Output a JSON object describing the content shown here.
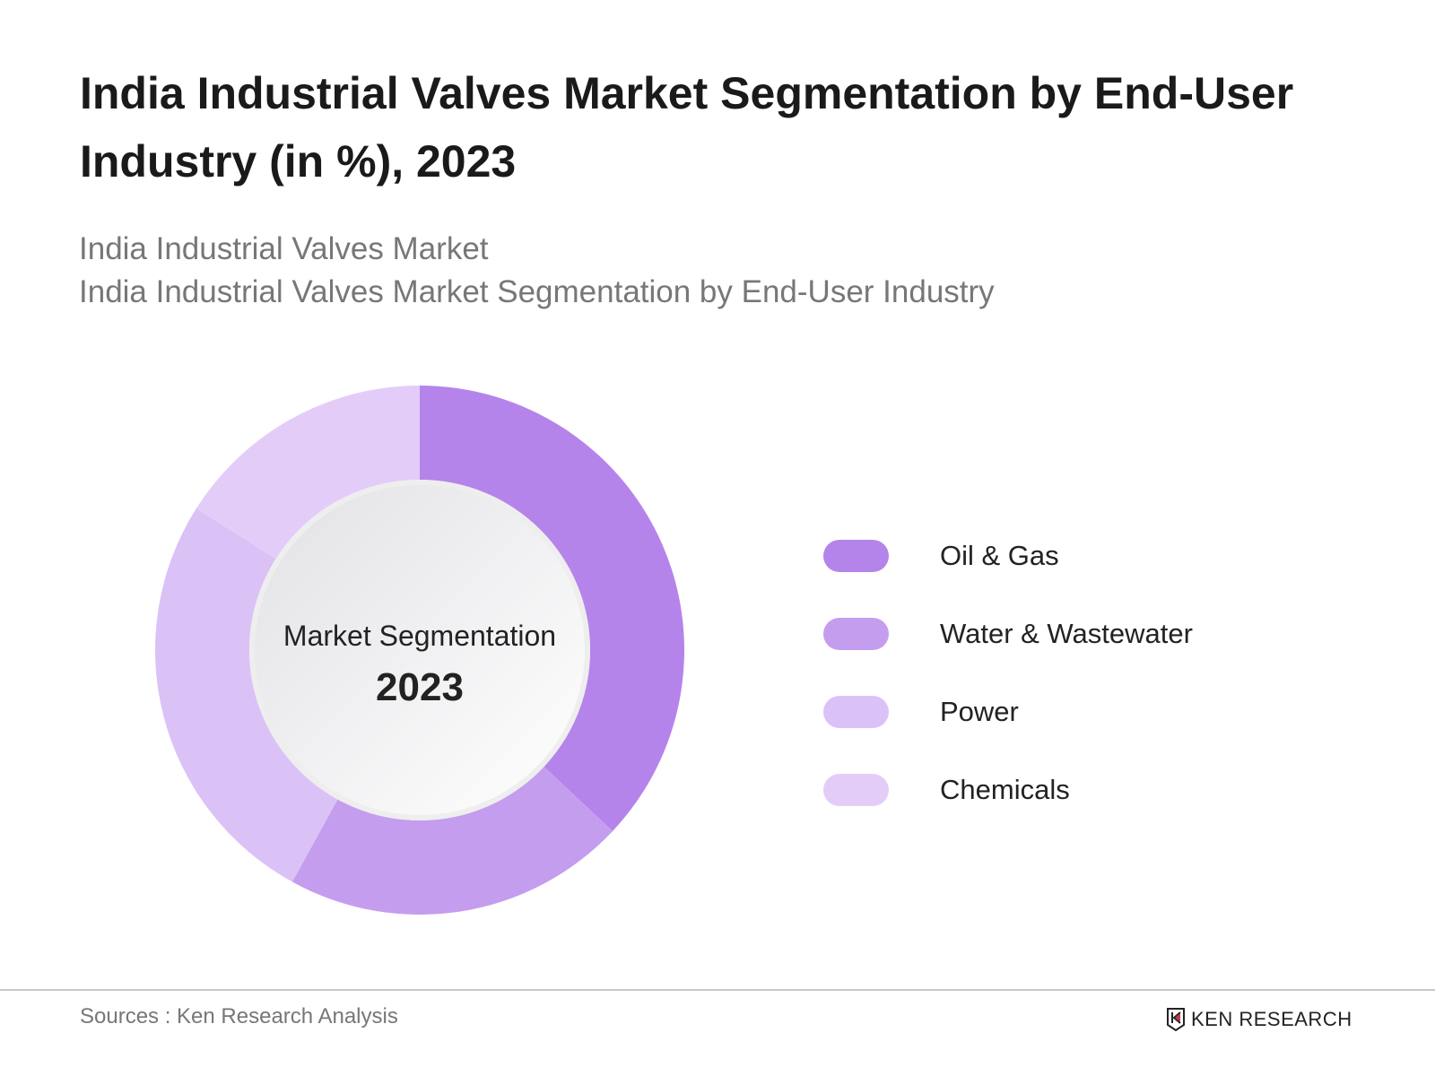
{
  "title": "India Industrial Valves Market Segmentation by End-User Industry (in %), 2023",
  "subtitle_1": "India Industrial Valves Market",
  "subtitle_2": "India Industrial Valves Market Segmentation by End-User Industry",
  "chart_data": {
    "type": "pie",
    "variant": "donut",
    "title": "India Industrial Valves Market Segmentation by End-User Industry (in %), 2023",
    "center_label": "Market Segmentation",
    "center_value": "2023",
    "categories": [
      "Oil & Gas",
      "Water & Wastewater",
      "Power",
      "Chemicals"
    ],
    "values": [
      37,
      21,
      26,
      16
    ],
    "colors": [
      "#b584ea",
      "#c59dee",
      "#dbc2f6",
      "#e3cdf8"
    ],
    "legend_position": "right"
  },
  "footer": {
    "source": "Sources : Ken Research Analysis",
    "logo_text": "KEN RESEARCH"
  }
}
